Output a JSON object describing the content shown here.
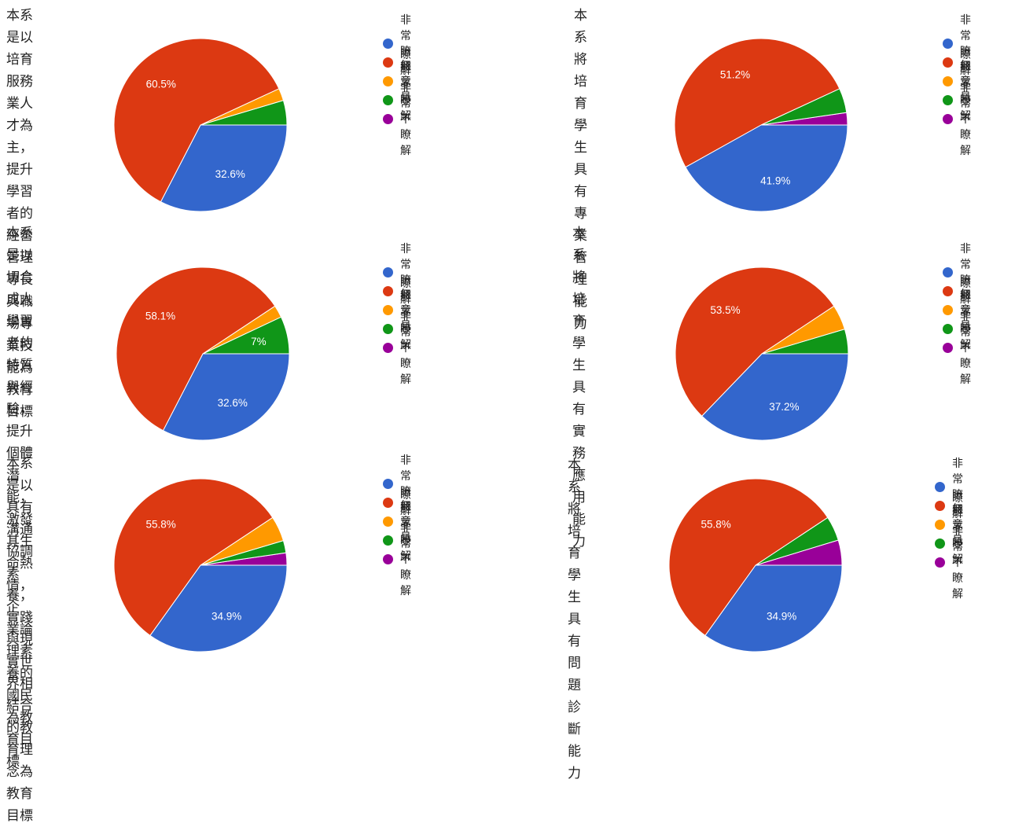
{
  "legend_labels": [
    "非常瞭解",
    "瞭解",
    "無意見",
    "不瞭解",
    "非常不瞭解"
  ],
  "colors": [
    "#3366cc",
    "#dc3912",
    "#ff9900",
    "#109618",
    "#990099"
  ],
  "chart_data": [
    {
      "type": "pie",
      "title": "本系是以培育服務業人才為主，提升學習者的經營管理專長與職場專業技能為\n教育目標",
      "categories": [
        "非常瞭解",
        "瞭解",
        "無意見",
        "不瞭解",
        "非常不瞭解"
      ],
      "values": [
        32.6,
        60.5,
        2.3,
        4.6,
        0
      ],
      "data_labels": [
        "32.6%",
        "60.5%",
        "",
        "",
        ""
      ],
      "legend": "right"
    },
    {
      "type": "pie",
      "title": "本系將培育學生具有專業管理能力",
      "categories": [
        "非常瞭解",
        "瞭解",
        "無意見",
        "不瞭解",
        "非常不瞭解"
      ],
      "values": [
        41.9,
        51.2,
        0,
        4.6,
        2.3
      ],
      "data_labels": [
        "41.9%",
        "51.2%",
        "",
        "",
        ""
      ],
      "legend": "right"
    },
    {
      "type": "pie",
      "title": "本系是以切合成人學習者的特質與經驗，提升個體潛能，激發其生命熱情，企\n業論理素養的國民為教育目標",
      "categories": [
        "非常瞭解",
        "瞭解",
        "無意見",
        "不瞭解",
        "非常不瞭解"
      ],
      "values": [
        32.6,
        58.1,
        2.3,
        7,
        0
      ],
      "data_labels": [
        "32.6%",
        "58.1%",
        "",
        "7%",
        ""
      ],
      "legend": "right"
    },
    {
      "type": "pie",
      "title": "本系將培育學生具有實務應用能力",
      "categories": [
        "非常瞭解",
        "瞭解",
        "無意見",
        "不瞭解",
        "非常不瞭解"
      ],
      "values": [
        37.2,
        53.5,
        4.7,
        4.6,
        0
      ],
      "data_labels": [
        "37.2%",
        "53.5%",
        "",
        "",
        ""
      ],
      "legend": "right"
    },
    {
      "type": "pie",
      "title": "本系是以具有溝通協調素養，實踐與現實世界相結合的教育理念為教育目標",
      "categories": [
        "非常瞭解",
        "瞭解",
        "無意見",
        "不瞭解",
        "非常不瞭解"
      ],
      "values": [
        34.9,
        55.8,
        4.7,
        2.3,
        2.3
      ],
      "data_labels": [
        "34.9%",
        "55.8%",
        "",
        "",
        ""
      ],
      "legend": "right"
    },
    {
      "type": "pie",
      "title": "本系將培育學生具有問題診斷能力",
      "categories": [
        "非常瞭解",
        "瞭解",
        "無意見",
        "不瞭解",
        "非常不瞭解"
      ],
      "values": [
        34.9,
        55.8,
        0,
        4.6,
        4.7
      ],
      "data_labels": [
        "34.9%",
        "55.8%",
        "",
        "",
        ""
      ],
      "legend": "right"
    }
  ]
}
